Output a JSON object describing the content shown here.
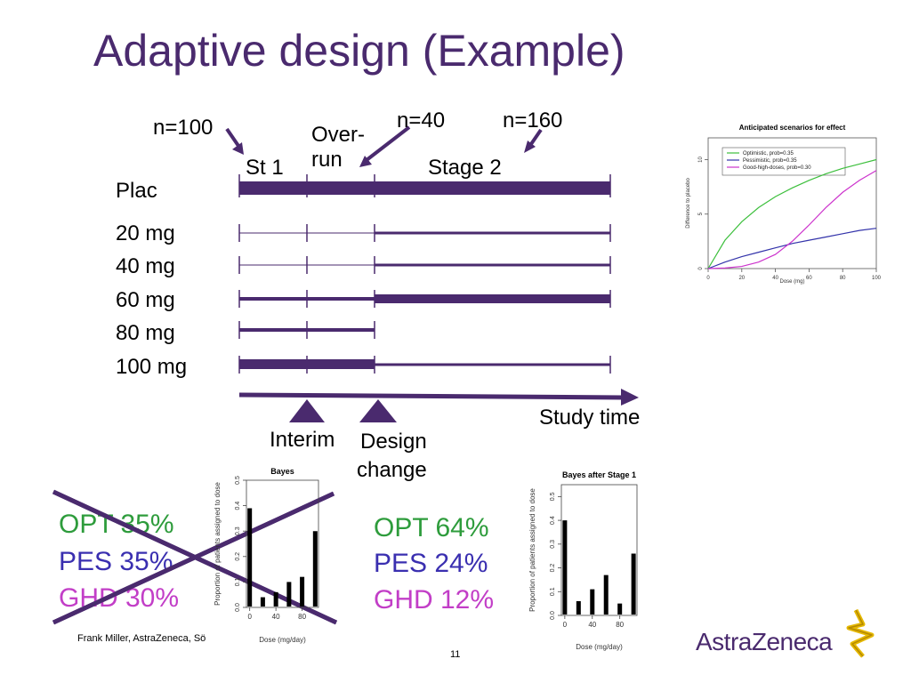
{
  "slide": {
    "title": "Adaptive design (Example)",
    "footer": "Frank Miller, AstraZeneca, Sö",
    "page_number": "11",
    "logo_text": "AstraZeneca"
  },
  "timeline": {
    "dose_labels": [
      "Plac",
      "20 mg",
      "40 mg",
      "60 mg",
      "80 mg",
      "100 mg"
    ],
    "stage1_label": "St 1",
    "overrun_label": [
      "Over-",
      "run"
    ],
    "stage2_label": "Stage 2",
    "n_stage1": "n=100",
    "n_overrun": "n=40",
    "n_stage2": "n=160",
    "time_axis_label": "Study time",
    "interim_label": "Interim",
    "design_change_label": [
      "Design",
      "change"
    ]
  },
  "priors_before": {
    "crossed_out": true,
    "items": [
      {
        "label": "OPT 35%",
        "color": "#2e9c3c"
      },
      {
        "label": "PES 35%",
        "color": "#3a2fb0"
      },
      {
        "label": "GHD 30%",
        "color": "#c23ec7"
      }
    ]
  },
  "priors_after": {
    "items": [
      {
        "label": "OPT 64%",
        "color": "#2e9c3c"
      },
      {
        "label": "PES 24%",
        "color": "#3a2fb0"
      },
      {
        "label": "GHD 12%",
        "color": "#c23ec7"
      }
    ]
  },
  "chart_data": [
    {
      "type": "line",
      "title": "Anticipated scenarios for effect",
      "xlabel": "Dose (mg)",
      "ylabel": "Difference to placebo",
      "xlim": [
        0,
        100
      ],
      "ylim": [
        0,
        12
      ],
      "xticks": [
        0,
        20,
        40,
        60,
        80,
        100
      ],
      "yticks": [
        0,
        5,
        10
      ],
      "legend_placement": "top-left",
      "x": [
        0,
        10,
        20,
        30,
        40,
        50,
        60,
        70,
        80,
        90,
        100
      ],
      "series": [
        {
          "name": "Optimistic,           prob=0.35",
          "color": "#3cbf3c",
          "values": [
            0,
            2.6,
            4.3,
            5.6,
            6.6,
            7.4,
            8.1,
            8.7,
            9.2,
            9.6,
            10.0
          ]
        },
        {
          "name": "Pessimistic,          prob=0.35",
          "color": "#3333aa",
          "values": [
            0,
            0.6,
            1.1,
            1.5,
            1.9,
            2.3,
            2.6,
            2.9,
            3.2,
            3.5,
            3.7
          ]
        },
        {
          "name": "Good-high-doses, prob=0.30",
          "color": "#cc33cc",
          "values": [
            0,
            0.05,
            0.2,
            0.6,
            1.3,
            2.5,
            4.0,
            5.6,
            7.0,
            8.1,
            9.0
          ]
        }
      ]
    },
    {
      "type": "bar",
      "title": "Bayes",
      "xlabel": "Dose (mg/day)",
      "ylabel": "Proportion of patients assigned to dose",
      "xlim": [
        -5,
        105
      ],
      "ylim": [
        0,
        0.5
      ],
      "xticks": [
        0,
        40,
        80
      ],
      "yticks": [
        0.0,
        0.1,
        0.2,
        0.3,
        0.4,
        0.5
      ],
      "x": [
        0,
        20,
        40,
        60,
        80,
        100
      ],
      "values": [
        0.39,
        0.04,
        0.06,
        0.1,
        0.12,
        0.3
      ]
    },
    {
      "type": "bar",
      "title": "Bayes after Stage 1",
      "xlabel": "Dose (mg/day)",
      "ylabel": "Proportion of patients assigned to dose",
      "xlim": [
        -5,
        105
      ],
      "ylim": [
        0,
        0.55
      ],
      "xticks": [
        0,
        40,
        80
      ],
      "yticks": [
        0.0,
        0.1,
        0.2,
        0.3,
        0.4,
        0.5
      ],
      "x": [
        0,
        20,
        40,
        60,
        80,
        100
      ],
      "values": [
        0.4,
        0.06,
        0.11,
        0.17,
        0.05,
        0.26
      ]
    }
  ]
}
